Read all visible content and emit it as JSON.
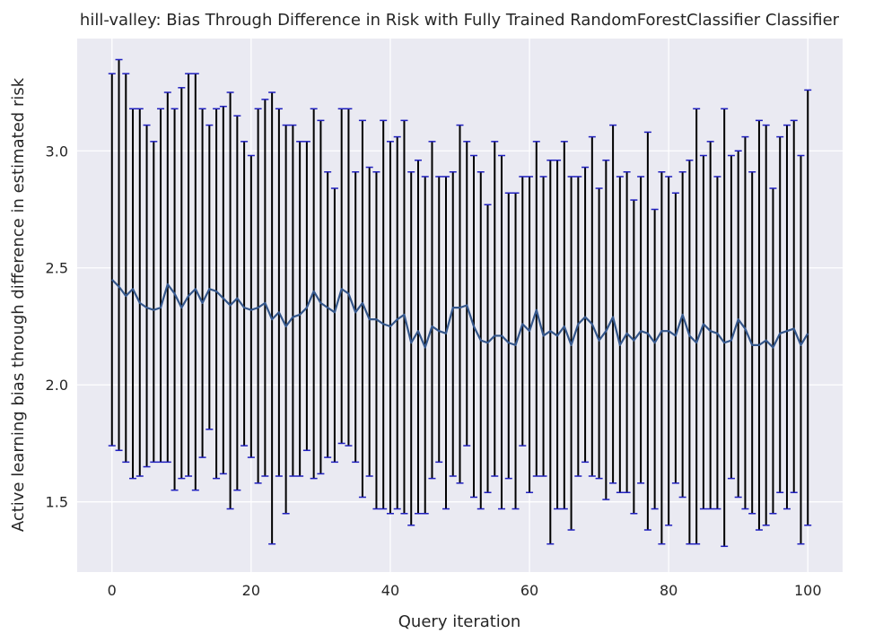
{
  "chart_data": {
    "type": "line",
    "title": "hill-valley: Bias Through Difference in Risk with Fully Trained RandomForestClassifier Classifier",
    "xlabel": "Query iteration",
    "ylabel": "Active learning bias through difference in estimated risk",
    "xlim": [
      -5,
      105
    ],
    "ylim": [
      1.2,
      3.48
    ],
    "xticks": [
      0,
      20,
      40,
      60,
      80,
      100
    ],
    "yticks": [
      1.5,
      2.0,
      2.5,
      3.0
    ],
    "grid": true,
    "colors": {
      "mean_line": "#34568b",
      "error_bar": "#000000",
      "cap": "#1f1fbf",
      "plot_bg": "#eaeaf2",
      "grid": "#ffffff"
    },
    "x": [
      0,
      1,
      2,
      3,
      4,
      5,
      6,
      7,
      8,
      9,
      10,
      11,
      12,
      13,
      14,
      15,
      16,
      17,
      18,
      19,
      20,
      21,
      22,
      23,
      24,
      25,
      26,
      27,
      28,
      29,
      30,
      31,
      32,
      33,
      34,
      35,
      36,
      37,
      38,
      39,
      40,
      41,
      42,
      43,
      44,
      45,
      46,
      47,
      48,
      49,
      50,
      51,
      52,
      53,
      54,
      55,
      56,
      57,
      58,
      59,
      60,
      61,
      62,
      63,
      64,
      65,
      66,
      67,
      68,
      69,
      70,
      71,
      72,
      73,
      74,
      75,
      76,
      77,
      78,
      79,
      80,
      81,
      82,
      83,
      84,
      85,
      86,
      87,
      88,
      89,
      90,
      91,
      92,
      93,
      94,
      95,
      96,
      97,
      98,
      99,
      100
    ],
    "mean": [
      2.45,
      2.42,
      2.38,
      2.41,
      2.35,
      2.33,
      2.32,
      2.33,
      2.43,
      2.39,
      2.33,
      2.38,
      2.41,
      2.35,
      2.41,
      2.4,
      2.37,
      2.34,
      2.37,
      2.33,
      2.32,
      2.33,
      2.35,
      2.28,
      2.31,
      2.25,
      2.29,
      2.3,
      2.33,
      2.4,
      2.35,
      2.33,
      2.31,
      2.41,
      2.39,
      2.31,
      2.35,
      2.28,
      2.28,
      2.26,
      2.25,
      2.28,
      2.3,
      2.18,
      2.23,
      2.16,
      2.25,
      2.23,
      2.22,
      2.33,
      2.33,
      2.34,
      2.25,
      2.19,
      2.18,
      2.21,
      2.21,
      2.18,
      2.17,
      2.26,
      2.23,
      2.32,
      2.21,
      2.23,
      2.21,
      2.25,
      2.17,
      2.26,
      2.29,
      2.26,
      2.19,
      2.23,
      2.29,
      2.17,
      2.22,
      2.19,
      2.23,
      2.22,
      2.18,
      2.23,
      2.23,
      2.21,
      2.3,
      2.21,
      2.18,
      2.26,
      2.23,
      2.22,
      2.18,
      2.19,
      2.28,
      2.24,
      2.17,
      2.17,
      2.19,
      2.16,
      2.22,
      2.23,
      2.24,
      2.17,
      2.22
    ],
    "upper": [
      3.33,
      3.39,
      3.33,
      3.18,
      3.18,
      3.11,
      3.04,
      3.18,
      3.25,
      3.18,
      3.27,
      3.33,
      3.33,
      3.18,
      3.11,
      3.18,
      3.19,
      3.25,
      3.15,
      3.04,
      2.98,
      3.18,
      3.22,
      3.25,
      3.18,
      3.11,
      3.11,
      3.04,
      3.04,
      3.18,
      3.13,
      2.91,
      2.84,
      3.18,
      3.18,
      2.91,
      3.13,
      2.93,
      2.91,
      3.13,
      3.04,
      3.06,
      3.13,
      2.91,
      2.96,
      2.89,
      3.04,
      2.89,
      2.89,
      2.91,
      3.11,
      3.04,
      2.98,
      2.91,
      2.77,
      3.04,
      2.98,
      2.82,
      2.82,
      2.89,
      2.89,
      3.04,
      2.89,
      2.96,
      2.96,
      3.04,
      2.89,
      2.89,
      2.93,
      3.06,
      2.84,
      2.96,
      3.11,
      2.89,
      2.91,
      2.79,
      2.89,
      3.08,
      2.75,
      2.91,
      2.89,
      2.82,
      2.91,
      2.96,
      3.18,
      2.98,
      3.04,
      2.89,
      3.18,
      2.98,
      3.0,
      3.06,
      2.91,
      3.13,
      3.11,
      2.84,
      3.06,
      3.11,
      3.13,
      2.98,
      3.26
    ],
    "lower": [
      1.74,
      1.72,
      1.67,
      1.6,
      1.61,
      1.65,
      1.67,
      1.67,
      1.67,
      1.55,
      1.6,
      1.61,
      1.55,
      1.69,
      1.81,
      1.6,
      1.62,
      1.47,
      1.55,
      1.74,
      1.69,
      1.58,
      1.61,
      1.32,
      1.61,
      1.45,
      1.61,
      1.61,
      1.72,
      1.6,
      1.62,
      1.69,
      1.67,
      1.75,
      1.74,
      1.67,
      1.52,
      1.61,
      1.47,
      1.47,
      1.45,
      1.47,
      1.45,
      1.4,
      1.45,
      1.45,
      1.6,
      1.67,
      1.47,
      1.61,
      1.58,
      1.74,
      1.52,
      1.47,
      1.54,
      1.61,
      1.47,
      1.6,
      1.47,
      1.74,
      1.54,
      1.61,
      1.61,
      1.32,
      1.47,
      1.47,
      1.38,
      1.61,
      1.67,
      1.61,
      1.6,
      1.51,
      1.58,
      1.54,
      1.54,
      1.45,
      1.58,
      1.38,
      1.47,
      1.32,
      1.4,
      1.58,
      1.52,
      1.32,
      1.32,
      1.47,
      1.47,
      1.47,
      1.31,
      1.6,
      1.52,
      1.47,
      1.45,
      1.38,
      1.4,
      1.45,
      1.54,
      1.47,
      1.54,
      1.32,
      1.4
    ]
  }
}
